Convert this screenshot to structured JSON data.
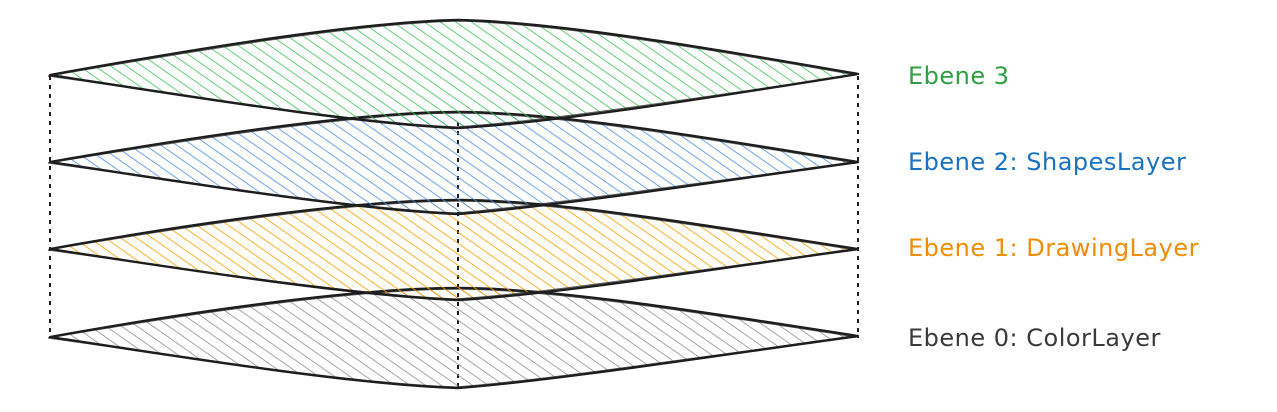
{
  "layers": [
    {
      "label": "Ebene 0: ColorLayer",
      "color": "#3a3a3a",
      "fill": "#8f8f8f"
    },
    {
      "label": "Ebene 1: DrawingLayer",
      "color": "#f08c00",
      "fill": "#f59f00"
    },
    {
      "label": "Ebene 2: ShapesLayer",
      "color": "#1971c2",
      "fill": "#4a90e2"
    },
    {
      "label": "Ebene 3",
      "color": "#2f9e44",
      "fill": "#40c057"
    }
  ],
  "colors": {
    "outline": "#1e1e1e",
    "background": "#ffffff"
  }
}
